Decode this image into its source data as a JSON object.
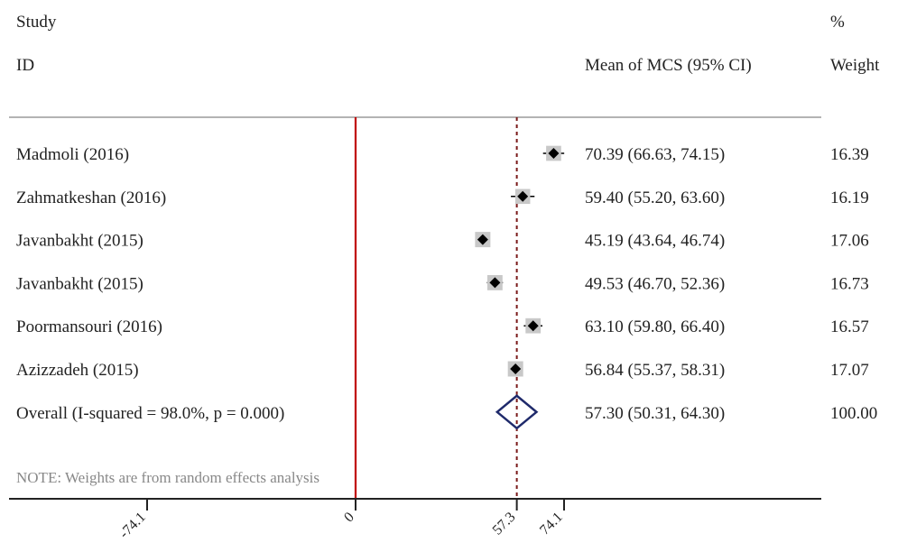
{
  "headers": {
    "study_top": "Study",
    "study_bottom": "ID",
    "effect": "Mean of MCS (95% CI)",
    "weight_top": "%",
    "weight_bottom": "Weight"
  },
  "note": "NOTE: Weights are from random effects analysis",
  "chart_data": {
    "type": "forest",
    "xlim": [
      -74.1,
      74.1
    ],
    "null_line": 0,
    "overall_line": 57.3,
    "ticks": [
      {
        "value": -74.1,
        "label": "-74.1"
      },
      {
        "value": 0,
        "label": "0"
      },
      {
        "value": 57.3,
        "label": "57.3"
      },
      {
        "value": 74.1,
        "label": "74.1"
      }
    ],
    "studies": [
      {
        "label": "Madmoli (2016)",
        "mean": 70.39,
        "lo": 66.63,
        "hi": 74.15,
        "ci_text": "70.39 (66.63, 74.15)",
        "weight": 16.39,
        "weight_text": "16.39"
      },
      {
        "label": "Zahmatkeshan (2016)",
        "mean": 59.4,
        "lo": 55.2,
        "hi": 63.6,
        "ci_text": "59.40 (55.20, 63.60)",
        "weight": 16.19,
        "weight_text": "16.19"
      },
      {
        "label": "Javanbakht (2015)",
        "mean": 45.19,
        "lo": 43.64,
        "hi": 46.74,
        "ci_text": "45.19 (43.64, 46.74)",
        "weight": 17.06,
        "weight_text": "17.06"
      },
      {
        "label": "Javanbakht (2015)",
        "mean": 49.53,
        "lo": 46.7,
        "hi": 52.36,
        "ci_text": "49.53 (46.70, 52.36)",
        "weight": 16.73,
        "weight_text": "16.73"
      },
      {
        "label": "Poormansouri (2016)",
        "mean": 63.1,
        "lo": 59.8,
        "hi": 66.4,
        "ci_text": "63.10 (59.80, 66.40)",
        "weight": 16.57,
        "weight_text": "16.57"
      },
      {
        "label": "Azizzadeh (2015)",
        "mean": 56.84,
        "lo": 55.37,
        "hi": 58.31,
        "ci_text": "56.84 (55.37, 58.31)",
        "weight": 17.07,
        "weight_text": "17.07"
      }
    ],
    "overall": {
      "label": "Overall  (I-squared = 98.0%, p = 0.000)",
      "mean": 57.3,
      "lo": 50.31,
      "hi": 64.3,
      "ci_text": "57.30 (50.31, 64.30)",
      "weight_text": "100.00"
    },
    "colors": {
      "null_line": "#c00000",
      "overall_line": "#7a1a1a",
      "diamond": "#1f2a6b",
      "box": "#c8c8c8",
      "marker": "#000000"
    }
  }
}
